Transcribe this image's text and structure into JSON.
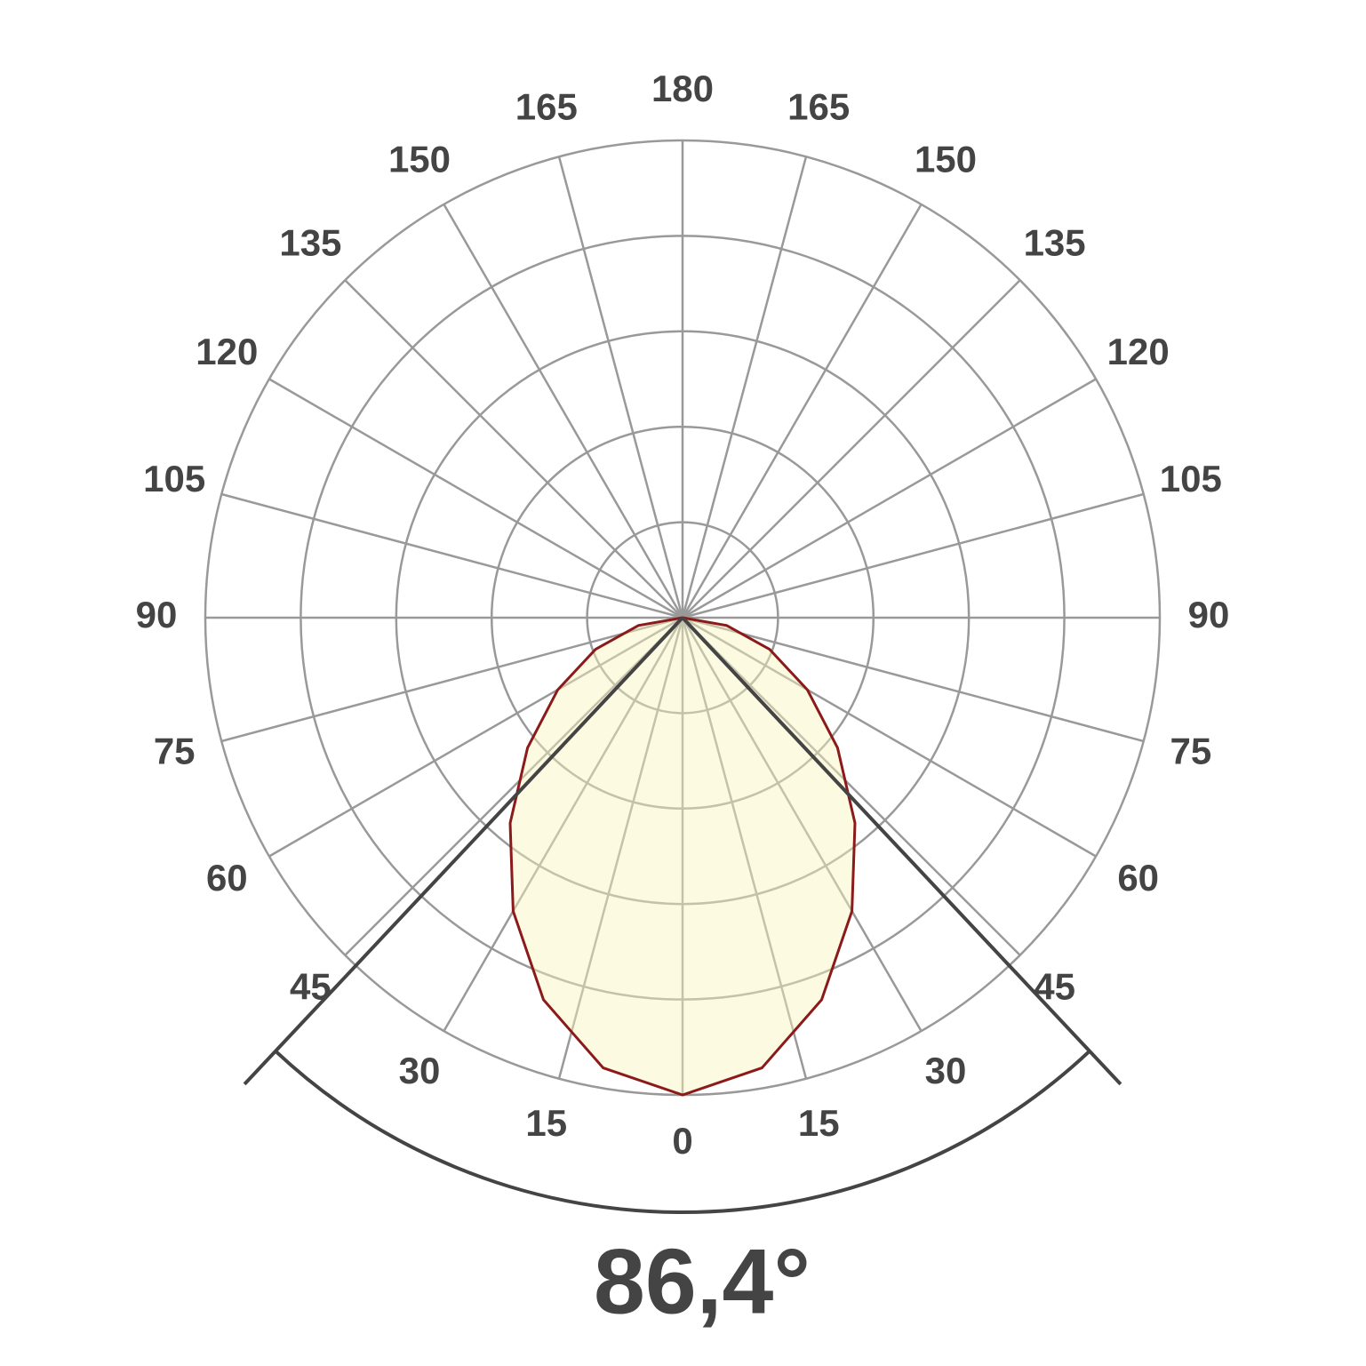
{
  "chart_data": {
    "type": "polar",
    "angle_ticks": [
      0,
      15,
      30,
      45,
      60,
      75,
      90,
      105,
      120,
      135,
      150,
      165,
      180
    ],
    "rlim": [
      0,
      5
    ],
    "rticks": [
      1,
      2,
      3,
      4,
      5
    ],
    "grid": true,
    "series": [
      {
        "color": "#8b1a1a",
        "angles": [
          -90,
          -80,
          -70,
          -60,
          -50,
          -40,
          -30,
          -20,
          -10,
          0,
          10,
          20,
          30,
          40,
          50,
          60,
          70,
          80,
          90
        ],
        "values": [
          0,
          0.47,
          0.97,
          1.51,
          2.12,
          2.81,
          3.55,
          4.26,
          4.79,
          5.0,
          4.79,
          4.26,
          3.55,
          2.81,
          2.12,
          1.51,
          0.97,
          0.47,
          0
        ]
      }
    ],
    "beam_angle": 86.4,
    "beam_angle_label": "86,4°"
  }
}
